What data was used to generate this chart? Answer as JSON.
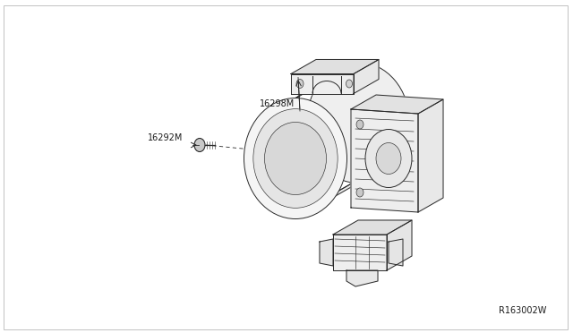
{
  "background_color": "#ffffff",
  "line_color": "#2a2a2a",
  "text_color": "#1a1a1a",
  "part_label_1": "16298M",
  "part_label_2": "16292M",
  "diagram_id": "R163002W",
  "figsize": [
    6.4,
    3.72
  ],
  "dpi": 100,
  "border_color": "#cccccc",
  "hatch_color": "#555555",
  "fill_light": "#f8f8f8",
  "fill_medium": "#efefef",
  "lw_main": 0.7,
  "lw_thin": 0.45,
  "lw_thick": 0.9
}
